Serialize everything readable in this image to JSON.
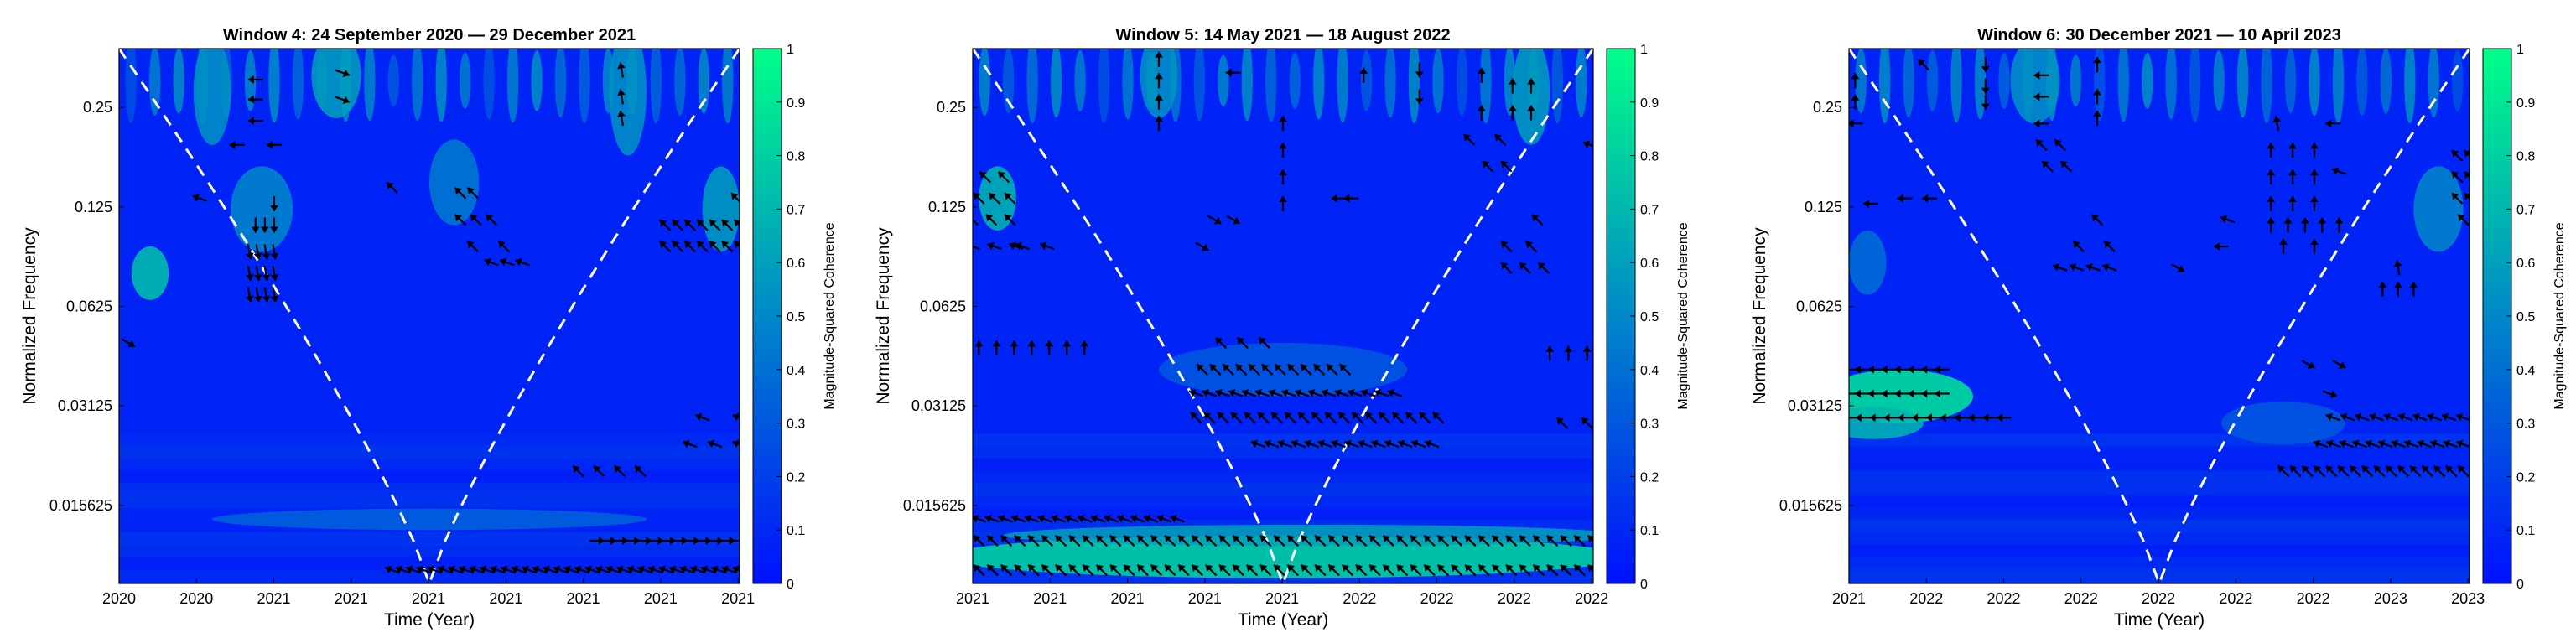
{
  "chart_data": [
    {
      "type": "heatmap",
      "title": "Window 4: 24 September 2020 — 29 December 2021",
      "xlabel": "Time (Year)",
      "ylabel": "Normalized Frequency",
      "x_tick_labels": [
        "2020",
        "2020",
        "2021",
        "2021",
        "2021",
        "2021",
        "2021",
        "2021",
        "2021"
      ],
      "y_tick_labels": [
        "0.25",
        "0.125",
        "0.0625",
        "0.03125",
        "0.015625"
      ],
      "y_scale": "log2",
      "colorbar": {
        "label": "Magnitude-Squared Coherence",
        "ticks": [
          "0",
          "0.1",
          "0.2",
          "0.3",
          "0.4",
          "0.5",
          "0.6",
          "0.7",
          "0.8",
          "0.9",
          "1"
        ],
        "range": [
          0,
          1
        ]
      },
      "hotspots": [
        {
          "x": 0.05,
          "y": 0.42,
          "sx": 0.03,
          "sy": 0.05,
          "v": 0.75
        },
        {
          "x": 0.15,
          "y": 0.08,
          "sx": 0.03,
          "sy": 0.1,
          "v": 0.55
        },
        {
          "x": 0.23,
          "y": 0.3,
          "sx": 0.05,
          "sy": 0.08,
          "v": 0.5
        },
        {
          "x": 0.35,
          "y": 0.05,
          "sx": 0.04,
          "sy": 0.08,
          "v": 0.6
        },
        {
          "x": 0.54,
          "y": 0.25,
          "sx": 0.04,
          "sy": 0.08,
          "v": 0.45
        },
        {
          "x": 0.82,
          "y": 0.08,
          "sx": 0.03,
          "sy": 0.12,
          "v": 0.55
        },
        {
          "x": 0.97,
          "y": 0.3,
          "sx": 0.03,
          "sy": 0.08,
          "v": 0.6
        },
        {
          "x": 0.5,
          "y": 0.88,
          "sx": 0.35,
          "sy": 0.02,
          "v": 0.35
        }
      ],
      "arrow_rows": [
        {
          "y": 0.058,
          "x0": 0.2,
          "x1": 0.24,
          "n": 1,
          "angle": 180
        },
        {
          "y": 0.095,
          "x0": 0.2,
          "x1": 0.24,
          "n": 1,
          "angle": 180
        },
        {
          "y": 0.135,
          "x0": 0.2,
          "x1": 0.24,
          "n": 1,
          "angle": 180
        },
        {
          "y": 0.18,
          "x0": 0.19,
          "x1": 0.25,
          "n": 2,
          "angle": 180
        },
        {
          "y": 0.045,
          "x0": 0.35,
          "x1": 0.37,
          "n": 1,
          "angle": 20
        },
        {
          "y": 0.095,
          "x0": 0.35,
          "x1": 0.37,
          "n": 1,
          "angle": 20
        },
        {
          "y": 0.04,
          "x0": 0.81,
          "x1": 0.81,
          "n": 1,
          "angle": -100
        },
        {
          "y": 0.09,
          "x0": 0.81,
          "x1": 0.81,
          "n": 1,
          "angle": -100
        },
        {
          "y": 0.13,
          "x0": 0.81,
          "x1": 0.81,
          "n": 1,
          "angle": -100
        },
        {
          "y": 0.28,
          "x0": 0.12,
          "x1": 0.14,
          "n": 1,
          "angle": 200
        },
        {
          "y": 0.26,
          "x0": 0.43,
          "x1": 0.45,
          "n": 1,
          "angle": 225
        },
        {
          "y": 0.27,
          "x0": 0.55,
          "x1": 0.57,
          "n": 2,
          "angle": 225
        },
        {
          "y": 0.32,
          "x0": 0.55,
          "x1": 0.6,
          "n": 3,
          "angle": 225
        },
        {
          "y": 0.37,
          "x0": 0.57,
          "x1": 0.62,
          "n": 2,
          "angle": 225
        },
        {
          "y": 0.4,
          "x0": 0.6,
          "x1": 0.65,
          "n": 3,
          "angle": 200
        },
        {
          "y": 0.29,
          "x0": 0.25,
          "x1": 0.25,
          "n": 1,
          "angle": 90
        },
        {
          "y": 0.33,
          "x0": 0.22,
          "x1": 0.25,
          "n": 3,
          "angle": 90
        },
        {
          "y": 0.38,
          "x0": 0.21,
          "x1": 0.25,
          "n": 4,
          "angle": 80
        },
        {
          "y": 0.42,
          "x0": 0.21,
          "x1": 0.25,
          "n": 4,
          "angle": 80
        },
        {
          "y": 0.46,
          "x0": 0.21,
          "x1": 0.25,
          "n": 4,
          "angle": 80
        },
        {
          "y": 0.33,
          "x0": 0.88,
          "x1": 1.0,
          "n": 7,
          "angle": 225
        },
        {
          "y": 0.37,
          "x0": 0.88,
          "x1": 1.0,
          "n": 7,
          "angle": 225
        },
        {
          "y": 0.28,
          "x0": 0.99,
          "x1": 1.0,
          "n": 1,
          "angle": 225
        },
        {
          "y": 0.55,
          "x0": 0.0,
          "x1": 0.03,
          "n": 1,
          "angle": 30
        },
        {
          "y": 0.69,
          "x0": 0.94,
          "x1": 1.0,
          "n": 2,
          "angle": 200
        },
        {
          "y": 0.74,
          "x0": 0.92,
          "x1": 1.0,
          "n": 3,
          "angle": 200
        },
        {
          "y": 0.79,
          "x0": 0.74,
          "x1": 0.84,
          "n": 4,
          "angle": 225
        },
        {
          "y": 0.92,
          "x0": 0.77,
          "x1": 1.0,
          "n": 13,
          "angle": 0
        },
        {
          "y": 0.975,
          "x0": 0.44,
          "x1": 1.0,
          "n": 34,
          "angle": 200
        }
      ]
    },
    {
      "type": "heatmap",
      "title": "Window 5: 14 May 2021 — 18 August 2022",
      "xlabel": "Time (Year)",
      "ylabel": "Normalized Frequency",
      "x_tick_labels": [
        "2021",
        "2021",
        "2021",
        "2021",
        "2021",
        "2022",
        "2022",
        "2022",
        "2022"
      ],
      "y_tick_labels": [
        "0.25",
        "0.125",
        "0.0625",
        "0.03125",
        "0.015625"
      ],
      "y_scale": "log2",
      "colorbar": {
        "label": "Magnitude-Squared Coherence",
        "ticks": [
          "0",
          "0.1",
          "0.2",
          "0.3",
          "0.4",
          "0.5",
          "0.6",
          "0.7",
          "0.8",
          "0.9",
          "1"
        ],
        "range": [
          0,
          1
        ]
      },
      "hotspots": [
        {
          "x": 0.04,
          "y": 0.28,
          "sx": 0.03,
          "sy": 0.06,
          "v": 0.7
        },
        {
          "x": 0.5,
          "y": 0.95,
          "sx": 0.55,
          "sy": 0.04,
          "v": 0.85
        },
        {
          "x": 0.55,
          "y": 0.91,
          "sx": 0.5,
          "sy": 0.02,
          "v": 0.6
        },
        {
          "x": 0.9,
          "y": 0.08,
          "sx": 0.03,
          "sy": 0.1,
          "v": 0.6
        },
        {
          "x": 0.3,
          "y": 0.05,
          "sx": 0.03,
          "sy": 0.08,
          "v": 0.55
        },
        {
          "x": 0.5,
          "y": 0.6,
          "sx": 0.2,
          "sy": 0.05,
          "v": 0.3
        }
      ],
      "arrow_rows": [
        {
          "y": 0.24,
          "x0": 0.02,
          "x1": 0.05,
          "n": 2,
          "angle": 225
        },
        {
          "y": 0.28,
          "x0": 0.01,
          "x1": 0.06,
          "n": 3,
          "angle": 225
        },
        {
          "y": 0.32,
          "x0": 0.0,
          "x1": 0.06,
          "n": 3,
          "angle": 225
        },
        {
          "y": 0.37,
          "x0": 0.0,
          "x1": 0.07,
          "n": 3,
          "angle": 200
        },
        {
          "y": 0.37,
          "x0": 0.08,
          "x1": 0.12,
          "n": 2,
          "angle": 200
        },
        {
          "y": 0.56,
          "x0": 0.01,
          "x1": 0.18,
          "n": 7,
          "angle": -90
        },
        {
          "y": 0.57,
          "x0": 0.93,
          "x1": 0.99,
          "n": 3,
          "angle": -90
        },
        {
          "y": 0.55,
          "x0": 0.4,
          "x1": 0.47,
          "n": 3,
          "angle": 225
        },
        {
          "y": 0.6,
          "x0": 0.37,
          "x1": 0.6,
          "n": 12,
          "angle": 225
        },
        {
          "y": 0.645,
          "x0": 0.36,
          "x1": 0.68,
          "n": 16,
          "angle": 200
        },
        {
          "y": 0.69,
          "x0": 0.36,
          "x1": 0.75,
          "n": 19,
          "angle": 225
        },
        {
          "y": 0.74,
          "x0": 0.46,
          "x1": 0.74,
          "n": 14,
          "angle": 200
        },
        {
          "y": 0.88,
          "x0": 0.01,
          "x1": 0.33,
          "n": 16,
          "angle": 200
        },
        {
          "y": 0.92,
          "x0": 0.01,
          "x1": 1.0,
          "n": 46,
          "angle": 225
        },
        {
          "y": 0.975,
          "x0": 0.01,
          "x1": 1.0,
          "n": 46,
          "angle": 225
        },
        {
          "y": 0.02,
          "x0": 0.3,
          "x1": 0.3,
          "n": 1,
          "angle": -90
        },
        {
          "y": 0.06,
          "x0": 0.3,
          "x1": 0.3,
          "n": 1,
          "angle": -90
        },
        {
          "y": 0.1,
          "x0": 0.3,
          "x1": 0.3,
          "n": 1,
          "angle": -90
        },
        {
          "y": 0.14,
          "x0": 0.3,
          "x1": 0.3,
          "n": 1,
          "angle": -90
        },
        {
          "y": 0.045,
          "x0": 0.41,
          "x1": 0.43,
          "n": 1,
          "angle": 180
        },
        {
          "y": 0.14,
          "x0": 0.5,
          "x1": 0.5,
          "n": 1,
          "angle": -90
        },
        {
          "y": 0.19,
          "x0": 0.5,
          "x1": 0.5,
          "n": 1,
          "angle": -90
        },
        {
          "y": 0.24,
          "x0": 0.5,
          "x1": 0.5,
          "n": 1,
          "angle": -90
        },
        {
          "y": 0.29,
          "x0": 0.5,
          "x1": 0.5,
          "n": 1,
          "angle": -90
        },
        {
          "y": 0.05,
          "x0": 0.62,
          "x1": 0.64,
          "n": 1,
          "angle": -90
        },
        {
          "y": 0.28,
          "x0": 0.59,
          "x1": 0.61,
          "n": 2,
          "angle": 180
        },
        {
          "y": 0.04,
          "x0": 0.72,
          "x1": 0.72,
          "n": 1,
          "angle": 90
        },
        {
          "y": 0.09,
          "x0": 0.72,
          "x1": 0.72,
          "n": 1,
          "angle": 90
        },
        {
          "y": 0.05,
          "x0": 0.82,
          "x1": 0.82,
          "n": 1,
          "angle": -90
        },
        {
          "y": 0.12,
          "x0": 0.82,
          "x1": 0.82,
          "n": 1,
          "angle": -90
        },
        {
          "y": 0.07,
          "x0": 0.87,
          "x1": 0.9,
          "n": 2,
          "angle": -90
        },
        {
          "y": 0.12,
          "x0": 0.87,
          "x1": 0.9,
          "n": 2,
          "angle": -90
        },
        {
          "y": 0.17,
          "x0": 0.8,
          "x1": 0.85,
          "n": 2,
          "angle": 225
        },
        {
          "y": 0.22,
          "x0": 0.83,
          "x1": 0.86,
          "n": 2,
          "angle": 225
        },
        {
          "y": 0.18,
          "x0": 0.99,
          "x1": 1.0,
          "n": 1,
          "angle": 200
        },
        {
          "y": 0.32,
          "x0": 0.39,
          "x1": 0.42,
          "n": 2,
          "angle": 30
        },
        {
          "y": 0.37,
          "x0": 0.36,
          "x1": 0.38,
          "n": 1,
          "angle": 30
        },
        {
          "y": 0.32,
          "x0": 0.9,
          "x1": 0.92,
          "n": 1,
          "angle": 225
        },
        {
          "y": 0.37,
          "x0": 0.86,
          "x1": 0.9,
          "n": 2,
          "angle": 225
        },
        {
          "y": 0.41,
          "x0": 0.86,
          "x1": 0.92,
          "n": 3,
          "angle": 225
        },
        {
          "y": 0.7,
          "x0": 0.95,
          "x1": 0.99,
          "n": 2,
          "angle": 225
        }
      ]
    },
    {
      "type": "heatmap",
      "title": "Window 6: 30 December 2021 — 10 April 2023",
      "xlabel": "Time (Year)",
      "ylabel": "Normalized Frequency",
      "x_tick_labels": [
        "2021",
        "2022",
        "2022",
        "2022",
        "2022",
        "2022",
        "2022",
        "2023",
        "2023"
      ],
      "y_tick_labels": [
        "0.25",
        "0.125",
        "0.0625",
        "0.03125",
        "0.015625"
      ],
      "y_scale": "log2",
      "colorbar": {
        "label": "Magnitude-Squared Coherence",
        "ticks": [
          "0",
          "0.1",
          "0.2",
          "0.3",
          "0.4",
          "0.5",
          "0.6",
          "0.7",
          "0.8",
          "0.9",
          "1"
        ],
        "range": [
          0,
          1
        ]
      },
      "hotspots": [
        {
          "x": 0.08,
          "y": 0.65,
          "sx": 0.12,
          "sy": 0.05,
          "v": 0.9
        },
        {
          "x": 0.04,
          "y": 0.7,
          "sx": 0.08,
          "sy": 0.03,
          "v": 0.7
        },
        {
          "x": 0.03,
          "y": 0.4,
          "sx": 0.03,
          "sy": 0.06,
          "v": 0.4
        },
        {
          "x": 0.3,
          "y": 0.06,
          "sx": 0.04,
          "sy": 0.08,
          "v": 0.55
        },
        {
          "x": 0.95,
          "y": 0.3,
          "sx": 0.04,
          "sy": 0.08,
          "v": 0.5
        },
        {
          "x": 0.7,
          "y": 0.7,
          "sx": 0.1,
          "sy": 0.04,
          "v": 0.3
        }
      ],
      "arrow_rows": [
        {
          "y": 0.06,
          "x0": 0.0,
          "x1": 0.02,
          "n": 1,
          "angle": -90
        },
        {
          "y": 0.1,
          "x0": 0.0,
          "x1": 0.02,
          "n": 1,
          "angle": -90
        },
        {
          "y": 0.14,
          "x0": 0.0,
          "x1": 0.02,
          "n": 1,
          "angle": 180
        },
        {
          "y": 0.03,
          "x0": 0.11,
          "x1": 0.13,
          "n": 1,
          "angle": 225
        },
        {
          "y": 0.03,
          "x0": 0.21,
          "x1": 0.23,
          "n": 1,
          "angle": 90
        },
        {
          "y": 0.07,
          "x0": 0.21,
          "x1": 0.23,
          "n": 1,
          "angle": 90
        },
        {
          "y": 0.1,
          "x0": 0.21,
          "x1": 0.23,
          "n": 1,
          "angle": 90
        },
        {
          "y": 0.05,
          "x0": 0.3,
          "x1": 0.32,
          "n": 1,
          "angle": 180
        },
        {
          "y": 0.09,
          "x0": 0.3,
          "x1": 0.32,
          "n": 1,
          "angle": 180
        },
        {
          "y": 0.14,
          "x0": 0.3,
          "x1": 0.32,
          "n": 1,
          "angle": 180
        },
        {
          "y": 0.18,
          "x0": 0.31,
          "x1": 0.34,
          "n": 2,
          "angle": 225
        },
        {
          "y": 0.22,
          "x0": 0.32,
          "x1": 0.35,
          "n": 2,
          "angle": 225
        },
        {
          "y": 0.03,
          "x0": 0.39,
          "x1": 0.41,
          "n": 1,
          "angle": -90
        },
        {
          "y": 0.09,
          "x0": 0.39,
          "x1": 0.41,
          "n": 1,
          "angle": -90
        },
        {
          "y": 0.13,
          "x0": 0.39,
          "x1": 0.41,
          "n": 1,
          "angle": -90
        },
        {
          "y": 0.29,
          "x0": 0.03,
          "x1": 0.04,
          "n": 1,
          "angle": 180
        },
        {
          "y": 0.28,
          "x0": 0.09,
          "x1": 0.13,
          "n": 2,
          "angle": 180
        },
        {
          "y": 0.32,
          "x0": 0.39,
          "x1": 0.41,
          "n": 1,
          "angle": 225
        },
        {
          "y": 0.37,
          "x0": 0.37,
          "x1": 0.42,
          "n": 2,
          "angle": 225
        },
        {
          "y": 0.41,
          "x0": 0.34,
          "x1": 0.42,
          "n": 4,
          "angle": 200
        },
        {
          "y": 0.41,
          "x0": 0.53,
          "x1": 0.53,
          "n": 1,
          "angle": 30
        },
        {
          "y": 0.32,
          "x0": 0.61,
          "x1": 0.61,
          "n": 1,
          "angle": 200
        },
        {
          "y": 0.37,
          "x0": 0.59,
          "x1": 0.61,
          "n": 1,
          "angle": 180
        },
        {
          "y": 0.14,
          "x0": 0.69,
          "x1": 0.69,
          "n": 1,
          "angle": -100
        },
        {
          "y": 0.19,
          "x0": 0.68,
          "x1": 0.75,
          "n": 3,
          "angle": -90
        },
        {
          "y": 0.24,
          "x0": 0.68,
          "x1": 0.75,
          "n": 3,
          "angle": -90
        },
        {
          "y": 0.29,
          "x0": 0.68,
          "x1": 0.75,
          "n": 3,
          "angle": -90
        },
        {
          "y": 0.33,
          "x0": 0.68,
          "x1": 0.79,
          "n": 5,
          "angle": -90
        },
        {
          "y": 0.37,
          "x0": 0.7,
          "x1": 0.75,
          "n": 2,
          "angle": -90
        },
        {
          "y": 0.14,
          "x0": 0.77,
          "x1": 0.79,
          "n": 1,
          "angle": 180
        },
        {
          "y": 0.23,
          "x0": 0.78,
          "x1": 0.8,
          "n": 1,
          "angle": 200
        },
        {
          "y": 0.41,
          "x0": 0.88,
          "x1": 0.89,
          "n": 1,
          "angle": -100
        },
        {
          "y": 0.45,
          "x0": 0.86,
          "x1": 0.91,
          "n": 3,
          "angle": -90
        },
        {
          "y": 0.2,
          "x0": 0.98,
          "x1": 1.0,
          "n": 2,
          "angle": 225
        },
        {
          "y": 0.24,
          "x0": 0.98,
          "x1": 1.0,
          "n": 2,
          "angle": 225
        },
        {
          "y": 0.28,
          "x0": 0.98,
          "x1": 1.0,
          "n": 2,
          "angle": 225
        },
        {
          "y": 0.32,
          "x0": 0.98,
          "x1": 1.0,
          "n": 1,
          "angle": 225
        },
        {
          "y": 0.6,
          "x0": 0.0,
          "x1": 0.15,
          "n": 8,
          "angle": 180
        },
        {
          "y": 0.645,
          "x0": 0.0,
          "x1": 0.15,
          "n": 8,
          "angle": 180
        },
        {
          "y": 0.69,
          "x0": 0.0,
          "x1": 0.25,
          "n": 12,
          "angle": 180
        },
        {
          "y": 0.59,
          "x0": 0.74,
          "x1": 0.79,
          "n": 2,
          "angle": 30
        },
        {
          "y": 0.645,
          "x0": 0.76,
          "x1": 0.79,
          "n": 1,
          "angle": 20
        },
        {
          "y": 0.69,
          "x0": 0.78,
          "x1": 0.99,
          "n": 10,
          "angle": 200
        },
        {
          "y": 0.74,
          "x0": 0.76,
          "x1": 0.99,
          "n": 12,
          "angle": 200
        },
        {
          "y": 0.79,
          "x0": 0.7,
          "x1": 0.99,
          "n": 16,
          "angle": 225
        }
      ]
    }
  ]
}
